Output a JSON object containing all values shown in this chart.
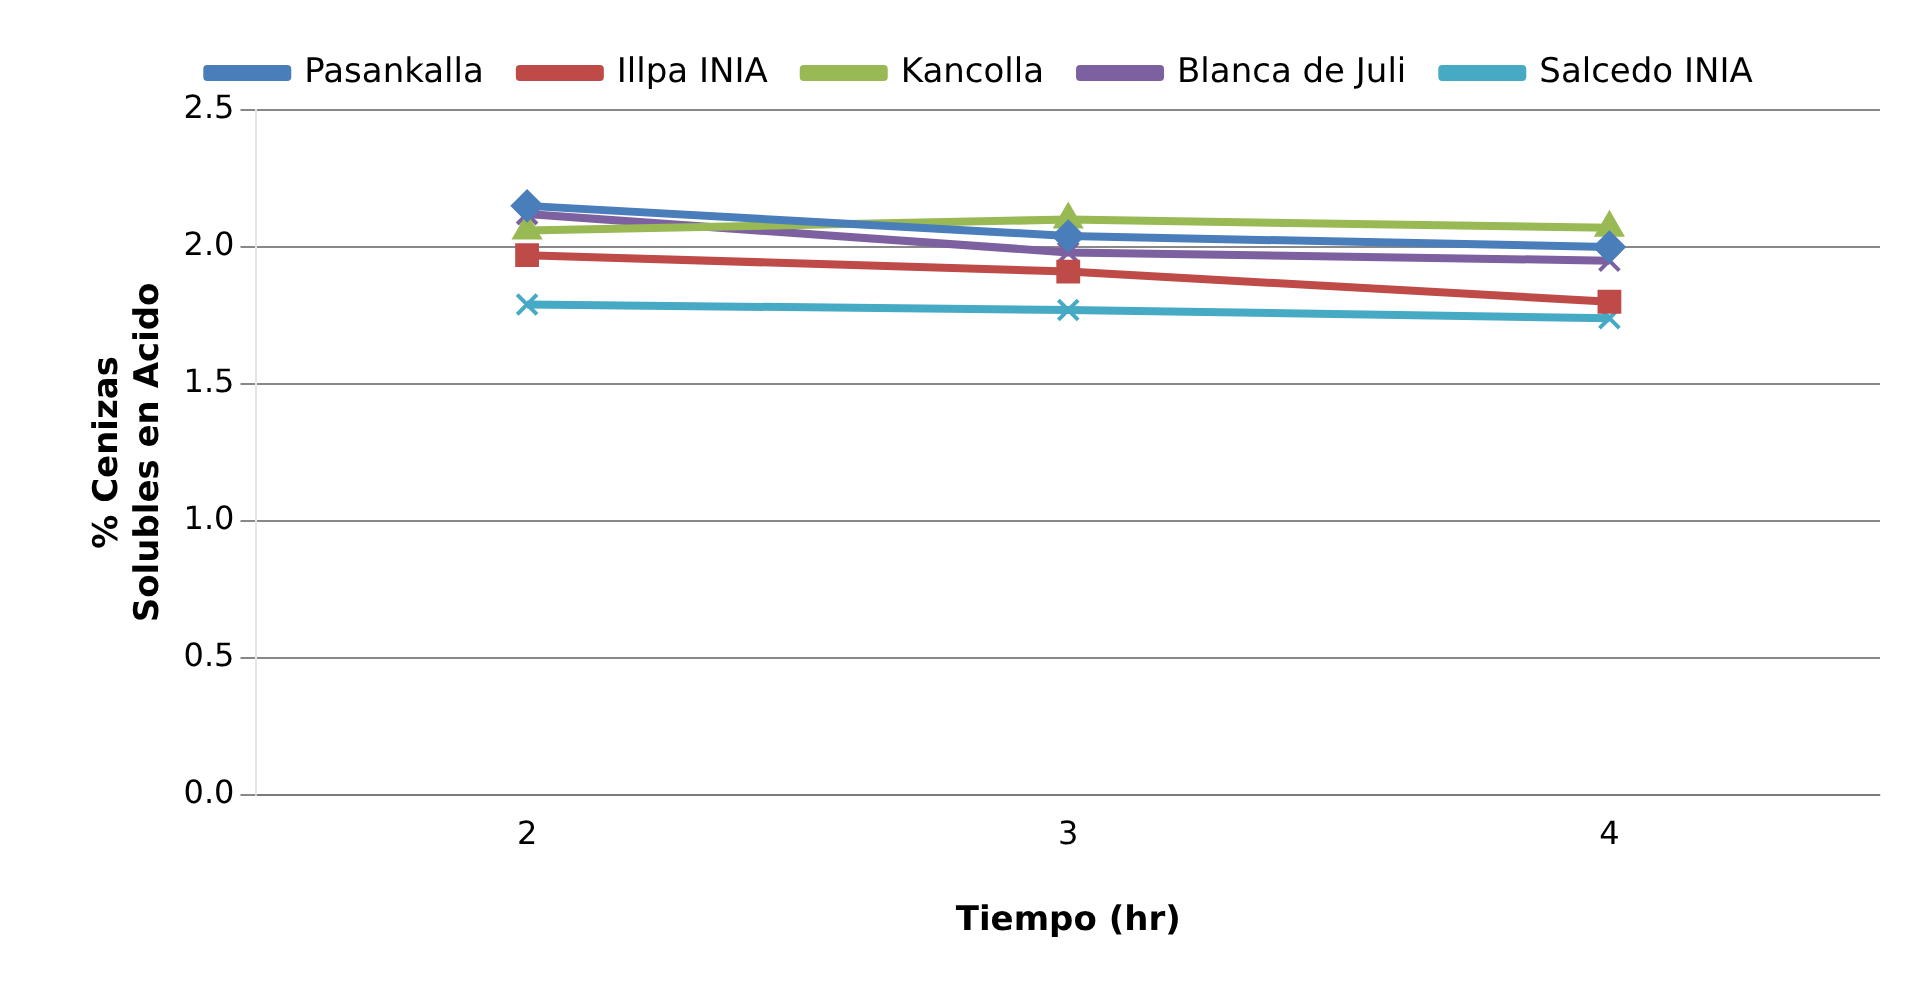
{
  "chart_data": {
    "type": "line",
    "xlabel": "Tiempo (hr)",
    "ylabel": "% Cenizas\nSolubles en Acido",
    "categories": [
      "2",
      "3",
      "4"
    ],
    "series": [
      {
        "name": "Pasankalla",
        "color": "#4a7ebb",
        "marker": "diamond",
        "values": [
          2.15,
          2.04,
          2.0
        ]
      },
      {
        "name": "Illpa INIA",
        "color": "#be4b48",
        "marker": "square",
        "values": [
          1.97,
          1.91,
          1.8
        ]
      },
      {
        "name": "Kancolla",
        "color": "#98b954",
        "marker": "triangle",
        "values": [
          2.06,
          2.1,
          2.07
        ]
      },
      {
        "name": "Blanca de Juli",
        "color": "#7d60a0",
        "marker": "cross",
        "values": [
          2.12,
          1.98,
          1.95
        ]
      },
      {
        "name": "Salcedo INIA",
        "color": "#46aac5",
        "marker": "cross",
        "values": [
          1.79,
          1.77,
          1.74
        ]
      }
    ],
    "ylim": [
      0,
      2.5
    ],
    "yticks": [
      {
        "value": 0,
        "label": "0.0"
      },
      0.5,
      {
        "value": 1,
        "label": "1.0"
      },
      1.5,
      {
        "value": 2,
        "label": "2.0"
      },
      2.5
    ],
    "grid": "y",
    "legend": "top"
  }
}
